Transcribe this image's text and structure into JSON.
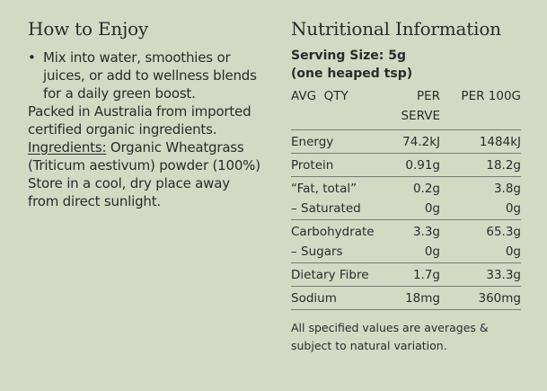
{
  "left": {
    "title": "How to Enjoy",
    "bullet_symbol": "•",
    "bullet_text": "Mix into water, smoothies or juices, or add to wellness blends for a daily green boost.",
    "packed": "Packed in Australia from imported certified organic ingredients.",
    "ingredients_label": "Ingredients:",
    "ingredients_text": "Organic Wheatgrass (Triticum aestivum) powder (100%)",
    "storage": "Store in a cool, dry place away from direct sunlight."
  },
  "right": {
    "title": "Nutritional Information",
    "serving_line1": "Serving Size: 5g",
    "serving_line2": "(one heaped tsp)",
    "columns": [
      "AVG  QTY",
      "PER SERVE",
      "PER 100G"
    ],
    "rows": [
      {
        "name": "Energy",
        "serve": "74.2kJ",
        "per100": "1484kJ"
      },
      {
        "name": "Protein",
        "serve": "0.91g",
        "per100": "18.2g"
      },
      {
        "name": "“Fat, total”",
        "serve": "0.2g",
        "per100": "3.8g"
      },
      {
        "name": "– Saturated",
        "serve": "0g",
        "per100": "0g"
      },
      {
        "name": "Carbohydrate",
        "serve": "3.3g",
        "per100": "65.3g"
      },
      {
        "name": "– Sugars",
        "serve": "0g",
        "per100": "0g"
      },
      {
        "name": "Dietary Fibre",
        "serve": "1.7g",
        "per100": "33.3g"
      },
      {
        "name": "Sodium",
        "serve": "18mg",
        "per100": "360mg"
      }
    ],
    "note": "All specified values are averages & subject to natural variation."
  }
}
